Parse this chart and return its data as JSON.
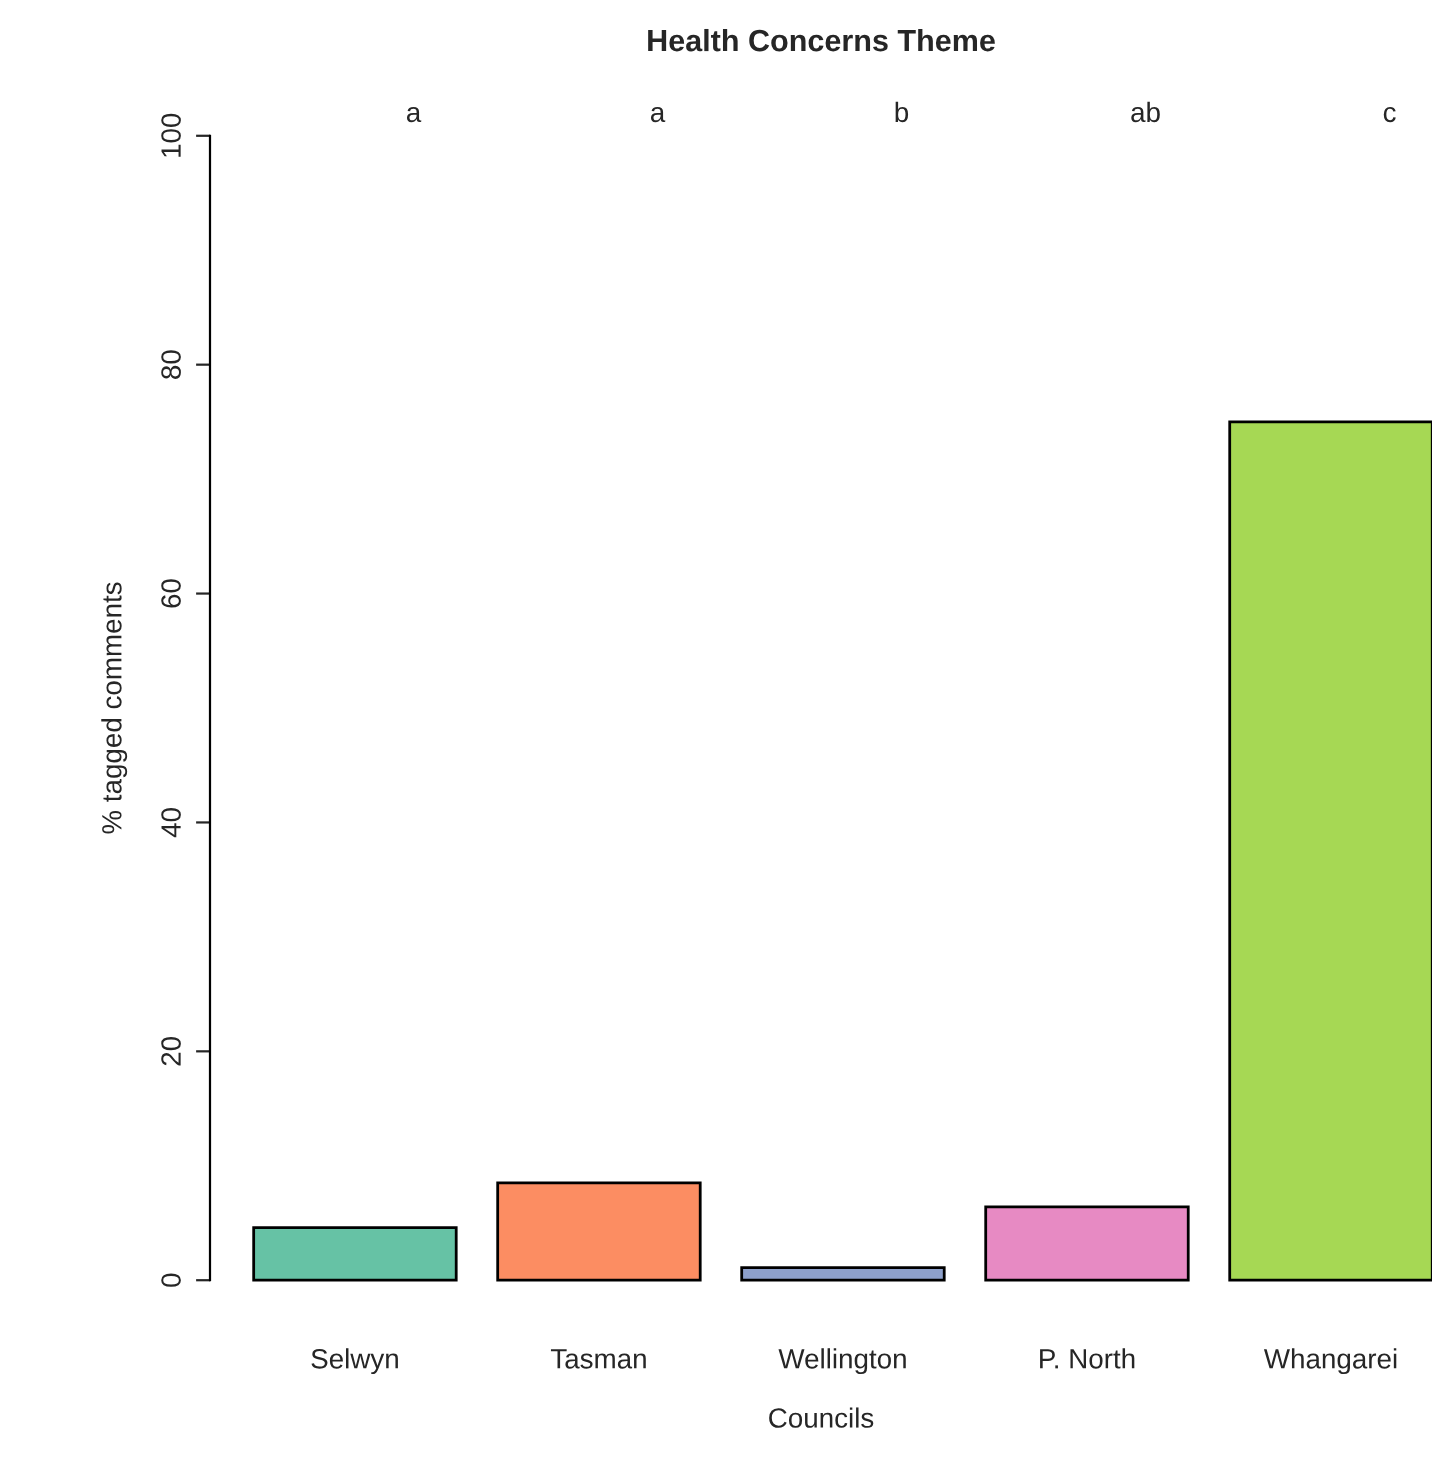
{
  "chart_data": {
    "type": "bar",
    "title": "Health Concerns Theme",
    "xlabel": "Councils",
    "ylabel": "% tagged comments",
    "categories": [
      "Selwyn",
      "Tasman",
      "Wellington",
      "P. North",
      "Whangarei"
    ],
    "values": [
      4.6,
      8.5,
      1.1,
      6.4,
      75
    ],
    "colors": [
      "#66c2a5",
      "#fc8d62",
      "#8da0cb",
      "#e78ac3",
      "#a6d854"
    ],
    "ylim": [
      0,
      100
    ],
    "yticks": [
      0,
      20,
      40,
      60,
      80,
      100
    ],
    "grid": false,
    "legend": false,
    "annotations": [
      "a",
      "a",
      "b",
      "ab",
      "c"
    ]
  }
}
